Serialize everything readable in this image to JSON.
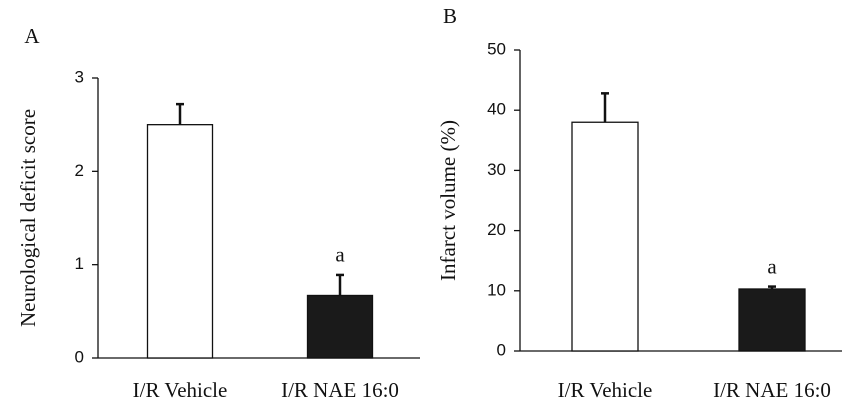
{
  "chart_data": [
    {
      "type": "bar",
      "panel_label": "A",
      "y_label": "Neurological deficit score",
      "categories": [
        "I/R Vehicle",
        "I/R NAE 16:0"
      ],
      "values": [
        2.5,
        0.67
      ],
      "errors": [
        0.22,
        0.22
      ],
      "colors": [
        "#ffffff",
        "#1a1a1a"
      ],
      "ylim": [
        0,
        3
      ],
      "yticks": [
        0,
        1,
        2,
        3
      ],
      "annotations": [
        {
          "category": "I/R NAE 16:0",
          "text": "a"
        }
      ]
    },
    {
      "type": "bar",
      "panel_label": "B",
      "y_label": "Infarct volume (%)",
      "categories": [
        "I/R Vehicle",
        "I/R NAE 16:0"
      ],
      "values": [
        38,
        10.3
      ],
      "errors": [
        4.8,
        0.4
      ],
      "colors": [
        "#ffffff",
        "#1a1a1a"
      ],
      "ylim": [
        0,
        50
      ],
      "yticks": [
        0,
        10,
        20,
        30,
        40,
        50
      ],
      "annotations": [
        {
          "category": "I/R NAE 16:0",
          "text": "a"
        }
      ]
    }
  ]
}
